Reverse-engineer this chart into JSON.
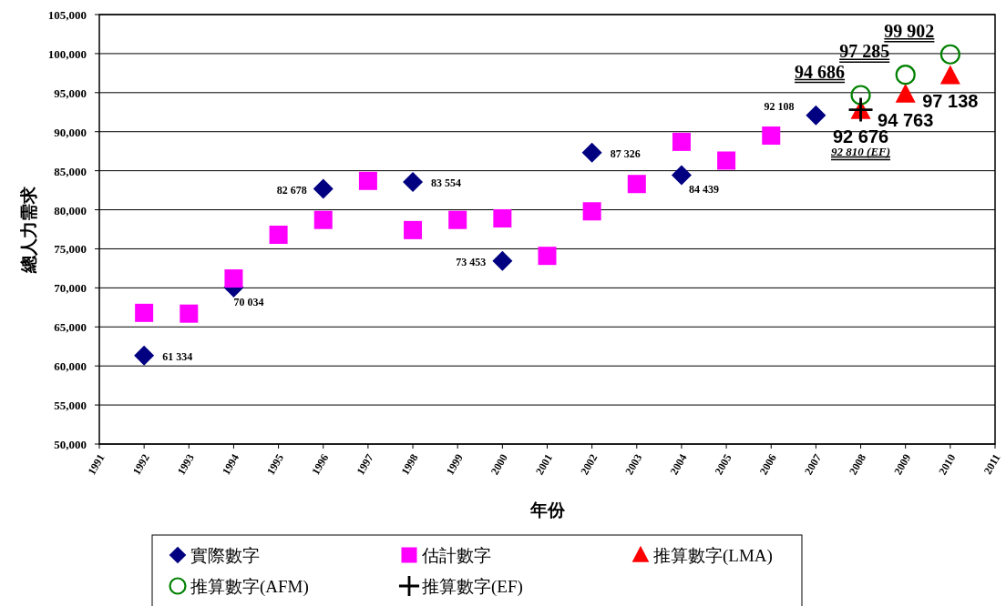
{
  "chart_data": {
    "type": "scatter",
    "xlabel": "年份",
    "ylabel": "總人力需求",
    "xlim": [
      1991,
      2011
    ],
    "xticks": [
      1991,
      1992,
      1993,
      1994,
      1995,
      1996,
      1997,
      1998,
      1999,
      2000,
      2001,
      2002,
      2003,
      2004,
      2005,
      2006,
      2007,
      2008,
      2009,
      2010,
      2011
    ],
    "ylim": [
      50000,
      105000
    ],
    "yticks": [
      {
        "value": 50000,
        "label": "50,000"
      },
      {
        "value": 55000,
        "label": "55,000"
      },
      {
        "value": 60000,
        "label": "60,000"
      },
      {
        "value": 65000,
        "label": "65,000"
      },
      {
        "value": 70000,
        "label": "70,000"
      },
      {
        "value": 75000,
        "label": "75,000"
      },
      {
        "value": 80000,
        "label": "80,000"
      },
      {
        "value": 85000,
        "label": "85,000"
      },
      {
        "value": 90000,
        "label": "90,000"
      },
      {
        "value": 95000,
        "label": "95,000"
      },
      {
        "value": 100000,
        "label": "100,000"
      },
      {
        "value": 105000,
        "label": "105,000"
      }
    ],
    "grid": "y",
    "legend": "bottom",
    "series": [
      {
        "name": "實際數字",
        "color": "#000080",
        "marker": "diamond",
        "x": [
          1992,
          1994,
          1996,
          1998,
          2000,
          2002,
          2004,
          2007
        ],
        "values": [
          61334,
          70034,
          82678,
          83554,
          73453,
          87326,
          84439,
          92108
        ],
        "value_labels": [
          "61 334",
          "70 034",
          "82 678",
          "83 554",
          "73 453",
          "87 326",
          "84 439",
          "92 108"
        ]
      },
      {
        "name": "估計數字",
        "color": "#ff00ff",
        "marker": "square",
        "x": [
          1992,
          1993,
          1994,
          1995,
          1996,
          1997,
          1998,
          1999,
          2000,
          2001,
          2002,
          2003,
          2004,
          2005,
          2006
        ],
        "values": [
          66800,
          66700,
          71200,
          76800,
          78700,
          83700,
          77400,
          78700,
          78900,
          74100,
          79800,
          83300,
          88700,
          86300,
          89500
        ]
      },
      {
        "name": "推算數字(LMA)",
        "color": "#ff0000",
        "marker": "triangle",
        "x": [
          2008,
          2009,
          2010
        ],
        "values": [
          92676,
          94763,
          97138
        ],
        "value_labels": [
          "92 676",
          "94 763",
          "97 138"
        ]
      },
      {
        "name": "推算數字(AFM)",
        "color": "#008000",
        "marker": "circle",
        "x": [
          2008,
          2009,
          2010
        ],
        "values": [
          94686,
          97285,
          99902
        ],
        "value_labels": [
          "94 686",
          "97 285",
          "99 902"
        ]
      },
      {
        "name": "推算數字(EF)",
        "color": "#000000",
        "marker": "cross",
        "x": [
          2008
        ],
        "values": [
          92810
        ],
        "value_labels": [
          "92 810 (EF)"
        ]
      }
    ]
  }
}
